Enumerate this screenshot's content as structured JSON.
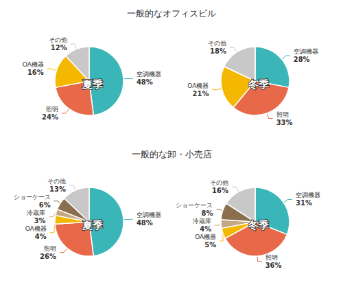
{
  "chart_data": [
    {
      "type": "pie",
      "title": "一般的なオフィスビル",
      "categories": [
        "空調機器",
        "照明",
        "OA機器",
        "その他"
      ],
      "colors": [
        "#3ab5b8",
        "#e8694a",
        "#f5b800",
        "#c8c8c8"
      ],
      "data_labels": true,
      "series": [
        {
          "name": "夏季",
          "values": [
            48,
            24,
            16,
            12
          ],
          "value_labels": [
            "48%",
            "24%",
            "16%",
            "12%"
          ]
        },
        {
          "name": "冬季",
          "values": [
            28,
            33,
            21,
            18
          ],
          "value_labels": [
            "28%",
            "33%",
            "21%",
            "18%"
          ]
        }
      ]
    },
    {
      "type": "pie",
      "title": "一般的な卸・小売店",
      "categories": [
        "空調機器",
        "照明",
        "OA機器",
        "冷蔵庫",
        "ショーケース",
        "その他"
      ],
      "colors": [
        "#3ab5b8",
        "#e8694a",
        "#f5b800",
        "#c4a882",
        "#8b6e4e",
        "#c8c8c8"
      ],
      "data_labels": true,
      "series": [
        {
          "name": "夏季",
          "values": [
            48,
            26,
            4,
            3,
            6,
            13
          ],
          "value_labels": [
            "48%",
            "26%",
            "4%",
            "3%",
            "6%",
            "13%"
          ]
        },
        {
          "name": "冬季",
          "values": [
            31,
            36,
            5,
            4,
            8,
            16
          ],
          "value_labels": [
            "31%",
            "36%",
            "5%",
            "4%",
            "8%",
            "16%"
          ]
        }
      ]
    }
  ]
}
